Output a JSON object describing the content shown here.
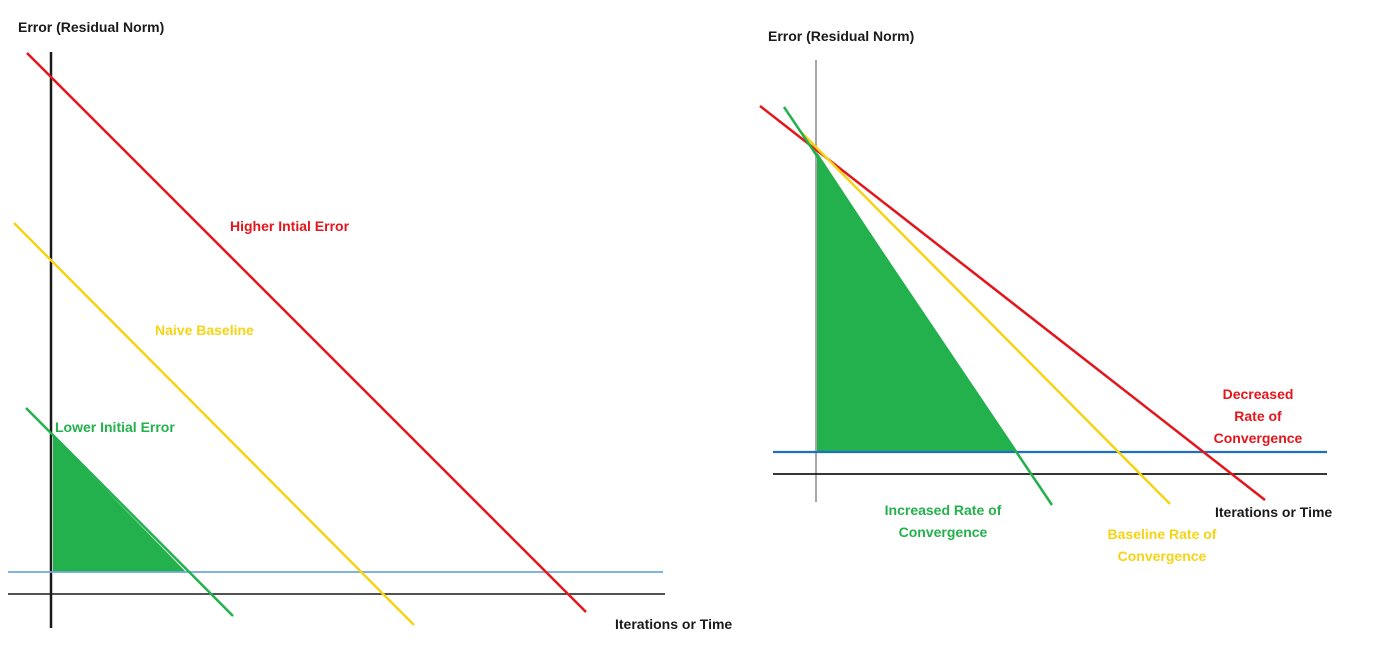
{
  "colors": {
    "red": "#e3161c",
    "yellow": "#f6d415",
    "green": "#22b14c",
    "blue_left": "#6fa8dc",
    "blue_right": "#1f6fc0",
    "axis": "#1a1a1a",
    "axis_right_vertical": "#8a8a8a"
  },
  "left_diagram": {
    "y_axis_title": "Error (Residual Norm)",
    "x_axis_title": "Iterations or Time",
    "labels": {
      "higher": "Higher Intial Error",
      "baseline": "Naive Baseline",
      "lower": "Lower Initial Error"
    }
  },
  "right_diagram": {
    "y_axis_title": "Error (Residual Norm)",
    "x_axis_title": "Iterations or Time",
    "labels": {
      "decreased_line1": "Decreased",
      "decreased_line2": "Rate of",
      "decreased_line3": "Convergence",
      "increased_line1": "Increased Rate of",
      "increased_line2": "Convergence",
      "baseline_line1": "Baseline Rate of",
      "baseline_line2": "Convergence"
    }
  }
}
